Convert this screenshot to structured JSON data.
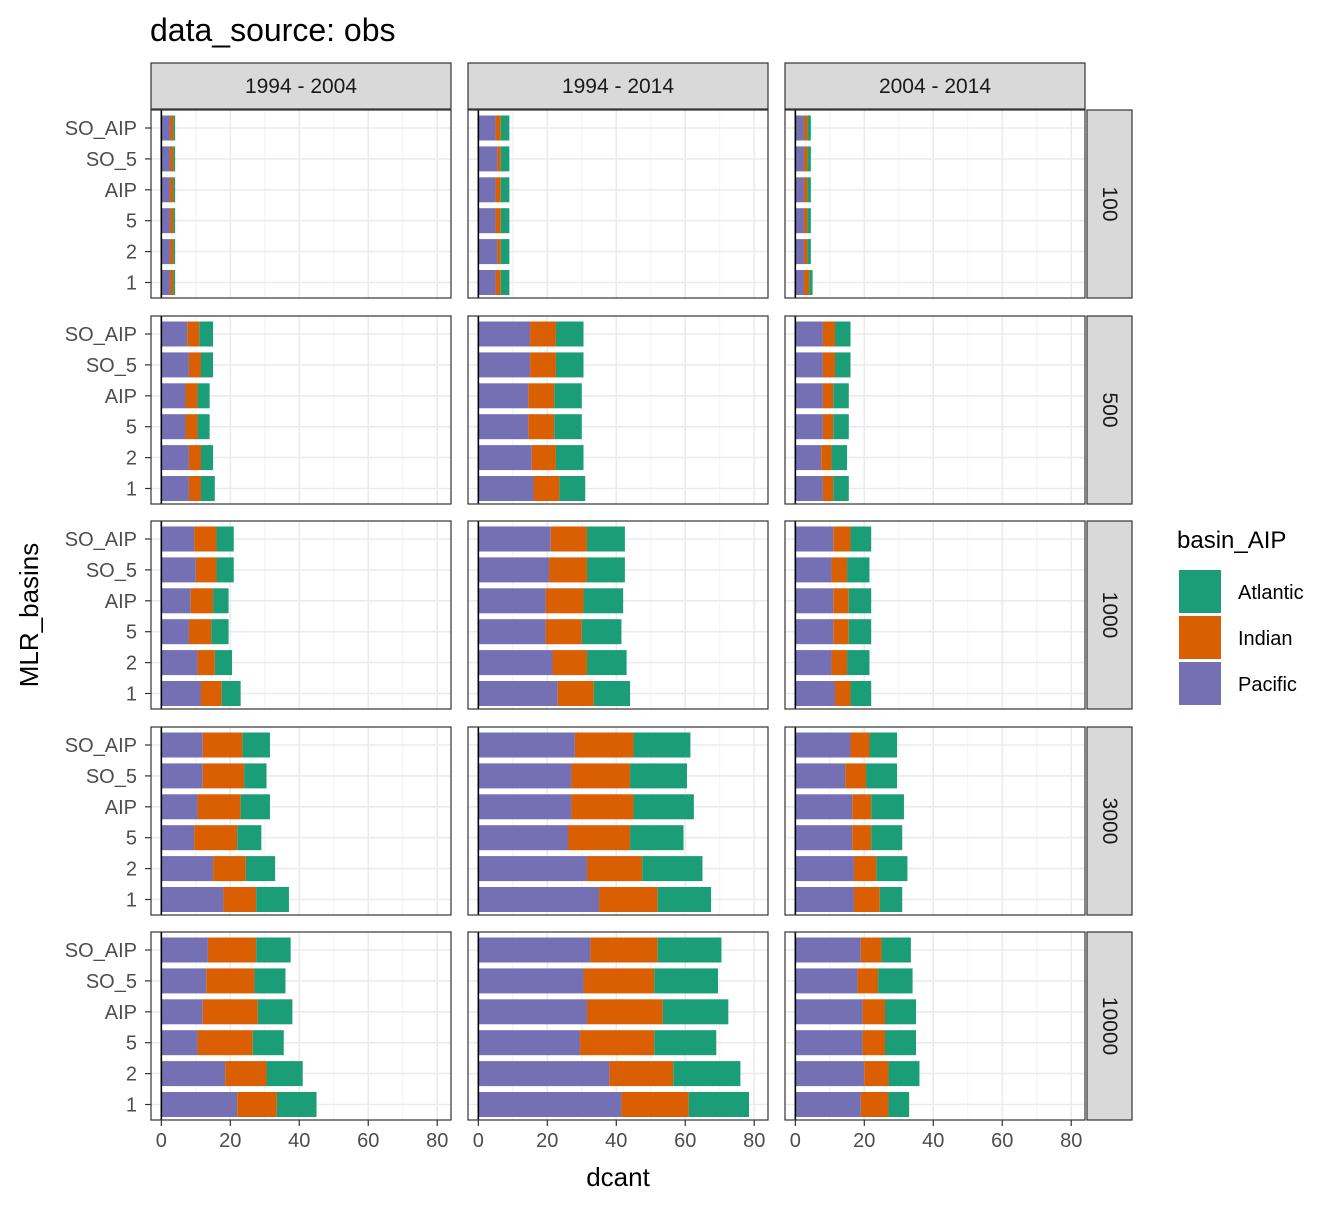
{
  "chart_data": {
    "type": "bar",
    "orientation": "horizontal",
    "stacked": true,
    "title": "data_source: obs",
    "xlabel": "dcant",
    "ylabel": "MLR_basins",
    "xlim": [
      -3,
      84
    ],
    "x_ticks": [
      0,
      20,
      40,
      60,
      80
    ],
    "grid": true,
    "legend": {
      "title": "basin_AIP",
      "position": "right",
      "entries": [
        "Atlantic",
        "Indian",
        "Pacific"
      ]
    },
    "colors": {
      "Pacific": "#7570B3",
      "Indian": "#D95F02",
      "Atlantic": "#1B9E77"
    },
    "stack_order": [
      "Pacific",
      "Indian",
      "Atlantic"
    ],
    "categories": [
      "SO_AIP",
      "SO_5",
      "AIP",
      "5",
      "2",
      "1"
    ],
    "col_facets": [
      "1994 - 2004",
      "1994 - 2014",
      "2004 - 2014"
    ],
    "row_facets": [
      "100",
      "500",
      "1000",
      "3000",
      "10000"
    ],
    "panels": [
      [
        {
          "Pacific": [
            2.5,
            2.5,
            2.5,
            2.5,
            2.5,
            2.5
          ],
          "Indian": [
            1.0,
            1.0,
            1.0,
            1.0,
            1.0,
            1.0
          ],
          "Atlantic": [
            0.5,
            0.5,
            0.5,
            0.5,
            0.5,
            0.5
          ]
        },
        {
          "Pacific": [
            5.0,
            5.5,
            5.0,
            5.0,
            5.5,
            5.0
          ],
          "Indian": [
            1.5,
            1.0,
            1.5,
            1.5,
            1.0,
            1.5
          ],
          "Atlantic": [
            2.5,
            2.5,
            2.5,
            2.5,
            2.5,
            2.5
          ]
        },
        {
          "Pacific": [
            2.5,
            2.5,
            2.5,
            2.5,
            2.5,
            2.5
          ],
          "Indian": [
            1.0,
            1.0,
            1.0,
            1.0,
            1.0,
            1.5
          ],
          "Atlantic": [
            1.0,
            1.0,
            1.0,
            1.0,
            1.0,
            1.0
          ]
        }
      ],
      [
        {
          "Pacific": [
            7.5,
            8.0,
            7.0,
            7.0,
            8.0,
            8.0
          ],
          "Indian": [
            3.5,
            3.5,
            3.5,
            3.5,
            3.5,
            3.5
          ],
          "Atlantic": [
            4.0,
            3.5,
            3.5,
            3.5,
            3.5,
            4.0
          ]
        },
        {
          "Pacific": [
            15.0,
            15.0,
            14.5,
            14.5,
            15.5,
            16.0
          ],
          "Indian": [
            7.5,
            7.5,
            7.5,
            7.5,
            7.0,
            7.5
          ],
          "Atlantic": [
            8.0,
            8.0,
            8.0,
            8.0,
            8.0,
            7.5
          ]
        },
        {
          "Pacific": [
            8.0,
            8.0,
            8.0,
            8.0,
            7.5,
            8.0
          ],
          "Indian": [
            3.5,
            3.5,
            3.0,
            3.0,
            3.0,
            3.0
          ],
          "Atlantic": [
            4.5,
            4.5,
            4.5,
            4.5,
            4.5,
            4.5
          ]
        }
      ],
      [
        {
          "Pacific": [
            9.5,
            10.0,
            8.5,
            8.0,
            10.5,
            11.5
          ],
          "Indian": [
            6.5,
            6.0,
            6.5,
            6.5,
            5.0,
            6.0
          ],
          "Atlantic": [
            5.0,
            5.0,
            4.5,
            5.0,
            5.0,
            5.5
          ]
        },
        {
          "Pacific": [
            21.0,
            20.5,
            19.5,
            19.5,
            21.5,
            23.0
          ],
          "Indian": [
            10.5,
            11.0,
            11.0,
            10.5,
            10.0,
            10.5
          ],
          "Atlantic": [
            11.0,
            11.0,
            11.5,
            11.5,
            11.5,
            10.5
          ]
        },
        {
          "Pacific": [
            11.0,
            10.5,
            11.0,
            11.0,
            10.5,
            11.5
          ],
          "Indian": [
            5.0,
            4.5,
            4.5,
            4.5,
            4.5,
            4.5
          ],
          "Atlantic": [
            6.0,
            6.5,
            6.5,
            6.5,
            6.5,
            6.0
          ]
        }
      ],
      [
        {
          "Pacific": [
            12.0,
            12.0,
            10.5,
            9.5,
            15.0,
            18.0
          ],
          "Indian": [
            11.5,
            12.0,
            12.5,
            12.5,
            9.5,
            9.5
          ],
          "Atlantic": [
            8.0,
            6.5,
            8.5,
            7.0,
            8.5,
            9.5
          ]
        },
        {
          "Pacific": [
            28.0,
            27.0,
            27.0,
            26.0,
            31.5,
            35.0
          ],
          "Indian": [
            17.0,
            17.0,
            18.0,
            18.0,
            16.0,
            17.0
          ],
          "Atlantic": [
            16.5,
            16.5,
            17.5,
            15.5,
            17.5,
            15.5
          ]
        },
        {
          "Pacific": [
            16.0,
            14.5,
            16.5,
            16.5,
            17.0,
            17.0
          ],
          "Indian": [
            5.5,
            6.0,
            5.5,
            5.5,
            6.5,
            7.5
          ],
          "Atlantic": [
            8.0,
            9.0,
            9.5,
            9.0,
            9.0,
            6.5
          ]
        }
      ],
      [
        {
          "Pacific": [
            13.5,
            13.0,
            12.0,
            10.5,
            18.5,
            22.0
          ],
          "Indian": [
            14.0,
            14.0,
            16.0,
            16.0,
            12.0,
            11.5
          ],
          "Atlantic": [
            10.0,
            9.0,
            10.0,
            9.0,
            10.5,
            11.5
          ]
        },
        {
          "Pacific": [
            32.5,
            30.5,
            31.5,
            29.5,
            38.0,
            41.5
          ],
          "Indian": [
            19.5,
            20.5,
            22.0,
            21.5,
            18.5,
            19.5
          ],
          "Atlantic": [
            18.5,
            18.5,
            19.0,
            18.0,
            19.5,
            17.5
          ]
        },
        {
          "Pacific": [
            19.0,
            18.0,
            19.5,
            19.5,
            20.0,
            19.0
          ],
          "Indian": [
            6.0,
            6.0,
            6.5,
            6.5,
            7.0,
            8.0
          ],
          "Atlantic": [
            8.5,
            10.0,
            9.0,
            9.0,
            9.0,
            6.0
          ]
        }
      ]
    ]
  }
}
